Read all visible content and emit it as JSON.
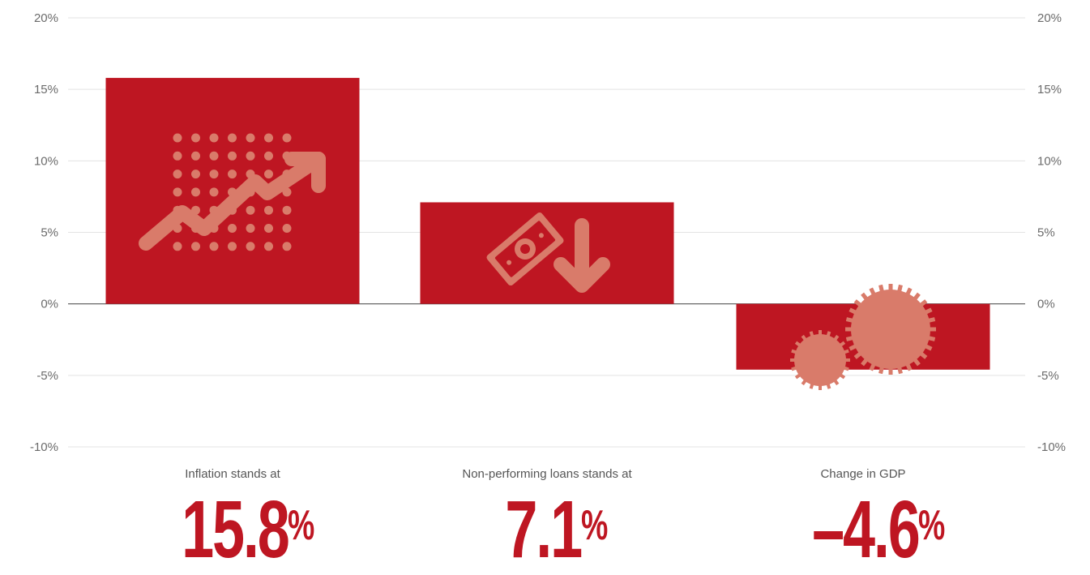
{
  "chart_data": {
    "type": "bar",
    "categories": [
      "Inflation stands at",
      "Non-performing loans stands at",
      "Change in GDP"
    ],
    "values": [
      15.8,
      7.1,
      -4.6
    ],
    "ylim": [
      -10,
      20
    ],
    "yticks": [
      "20%",
      "15%",
      "10%",
      "5%",
      "0%",
      "-5%",
      "-10%"
    ],
    "ytick_values": [
      20,
      15,
      10,
      5,
      0,
      -5,
      -10
    ],
    "y_axis_both_sides": true,
    "grid": true,
    "bar_color": "#be1622",
    "icon_color": "#d97b6a"
  },
  "big_values": [
    {
      "number": "15.8",
      "unit": "%"
    },
    {
      "number": "7.1",
      "unit": "%"
    },
    {
      "number": "–4.6",
      "unit": "%"
    }
  ],
  "icons": [
    "rising-arrow-icon",
    "money-down-icon",
    "gears-icon"
  ]
}
